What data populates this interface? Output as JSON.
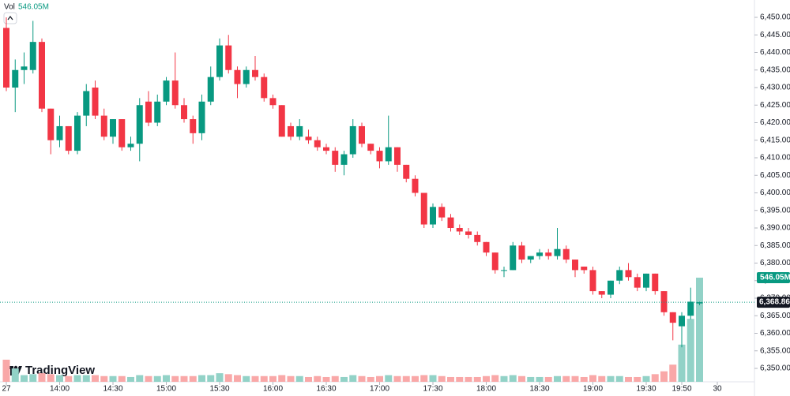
{
  "chart_data": {
    "type": "candlestick",
    "up_color": "#089981",
    "down_color": "#f23645",
    "volume_up_color": "#92d2c7",
    "volume_down_color": "#f9a8a8",
    "volume_title": "Vol",
    "volume_label": "546.05M",
    "last_price_label": "6,368.86",
    "brand": "TradingView",
    "open": [
      6447,
      6430,
      6435,
      6435,
      6443,
      6424,
      6415,
      6419,
      6412,
      6422,
      6430,
      6422,
      6416,
      6421,
      6413,
      6414,
      6426,
      6420,
      6426,
      6432,
      6425,
      6421,
      6417,
      6426,
      6433,
      6442,
      6435,
      6431,
      6435,
      6433,
      6427,
      6425,
      6419,
      6416,
      6416,
      6415,
      6413,
      6412,
      6408,
      6411,
      6419,
      6414,
      6412,
      6409,
      6413,
      6408,
      6404,
      6400,
      6391,
      6396,
      6393,
      6390,
      6389,
      6388,
      6386,
      6383,
      6378,
      6378,
      6385,
      6381,
      6382,
      6383,
      6382,
      6384,
      6381,
      6379,
      6378,
      6372,
      6371,
      6375,
      6378,
      6376,
      6373,
      6377,
      6372,
      6366,
      6362,
      6365,
      6368.5
    ],
    "high": [
      6450,
      6438,
      6440,
      6449,
      6444,
      6424,
      6422,
      6419,
      6423,
      6431,
      6432,
      6424,
      6421,
      6421,
      6416,
      6427,
      6429,
      6428,
      6433,
      6440,
      6427,
      6422,
      6428,
      6436,
      6444,
      6445,
      6436,
      6436,
      6439,
      6434,
      6428,
      6425,
      6420,
      6421,
      6418,
      6416,
      6414,
      6413,
      6412,
      6421,
      6420,
      6414,
      6413,
      6422,
      6413,
      6408,
      6405,
      6400,
      6397,
      6397,
      6394,
      6391,
      6390,
      6389,
      6386,
      6383,
      6379,
      6386,
      6386,
      6382,
      6384,
      6384,
      6390,
      6385,
      6381,
      6379,
      6379,
      6372,
      6375,
      6379,
      6380,
      6377,
      6377,
      6377,
      6372,
      6366,
      6366,
      6373,
      6369
    ],
    "low": [
      6429,
      6423,
      6431,
      6434,
      6423,
      6411,
      6413,
      6411,
      6411,
      6419,
      6421,
      6415,
      6414,
      6412,
      6412,
      6409,
      6419,
      6419,
      6425,
      6424,
      6420,
      6414,
      6415,
      6425,
      6432,
      6434,
      6427,
      6430,
      6432,
      6426,
      6424,
      6416,
      6415,
      6415,
      6414,
      6412,
      6411,
      6406,
      6405,
      6410,
      6413,
      6411,
      6407,
      6408,
      6406,
      6403,
      6399,
      6390,
      6390,
      6392,
      6389,
      6388,
      6387,
      6385,
      6382,
      6377,
      6376,
      6378,
      6380,
      6380,
      6381,
      6381,
      6381,
      6380,
      6376,
      6377,
      6371,
      6370,
      6370,
      6374,
      6375,
      6372,
      6372,
      6371,
      6365,
      6358,
      6356,
      6364,
      6368
    ],
    "close": [
      6430,
      6435,
      6436,
      6443,
      6424,
      6415,
      6419,
      6412,
      6422,
      6429,
      6422,
      6416,
      6421,
      6413,
      6414,
      6425,
      6420,
      6426,
      6432,
      6425,
      6421,
      6417,
      6426,
      6433,
      6442,
      6435,
      6431,
      6435,
      6433,
      6427,
      6425,
      6416,
      6416,
      6419,
      6415,
      6413,
      6412,
      6408,
      6411,
      6419,
      6414,
      6412,
      6409,
      6413,
      6408,
      6404,
      6400,
      6391,
      6396,
      6393,
      6390,
      6389,
      6388,
      6386,
      6383,
      6378,
      6378,
      6385,
      6381,
      6382,
      6383,
      6382,
      6384,
      6381,
      6378,
      6378,
      6372,
      6371,
      6375,
      6378,
      6376,
      6373,
      6377,
      6372,
      6366,
      6363,
      6365,
      6369,
      6368.86
    ],
    "volume": [
      116,
      70,
      35,
      40,
      45,
      40,
      35,
      30,
      35,
      35,
      35,
      30,
      30,
      30,
      25,
      35,
      30,
      30,
      35,
      30,
      30,
      30,
      35,
      35,
      45,
      40,
      35,
      30,
      30,
      30,
      30,
      35,
      30,
      30,
      25,
      30,
      25,
      30,
      25,
      35,
      30,
      25,
      30,
      35,
      30,
      30,
      30,
      35,
      35,
      30,
      25,
      25,
      25,
      25,
      30,
      35,
      30,
      35,
      30,
      25,
      25,
      25,
      30,
      30,
      30,
      25,
      35,
      30,
      30,
      30,
      25,
      25,
      30,
      40,
      55,
      90,
      195,
      330,
      546.05
    ],
    "ylim": [
      6350,
      6450
    ],
    "yticks": [
      {
        "value": 6350,
        "label": "6,350.00"
      },
      {
        "value": 6355,
        "label": "6,355.00"
      },
      {
        "value": 6360,
        "label": "6,360.00"
      },
      {
        "value": 6365,
        "label": "6,365.00"
      },
      {
        "value": 6370,
        "label": "6,370.00"
      },
      {
        "value": 6375,
        "label": "6,375.00"
      },
      {
        "value": 6380,
        "label": "6,380.00"
      },
      {
        "value": 6385,
        "label": "6,385.00"
      },
      {
        "value": 6390,
        "label": "6,390.00"
      },
      {
        "value": 6395,
        "label": "6,395.00"
      },
      {
        "value": 6400,
        "label": "6,400.00"
      },
      {
        "value": 6405,
        "label": "6,405.00"
      },
      {
        "value": 6410,
        "label": "6,410.00"
      },
      {
        "value": 6415,
        "label": "6,415.00"
      },
      {
        "value": 6420,
        "label": "6,420.00"
      },
      {
        "value": 6425,
        "label": "6,425.00"
      },
      {
        "value": 6430,
        "label": "6,430.00"
      },
      {
        "value": 6435,
        "label": "6,435.00"
      },
      {
        "value": 6440,
        "label": "6,440.00"
      },
      {
        "value": 6445,
        "label": "6,445.00"
      },
      {
        "value": 6450,
        "label": "6,450.00"
      }
    ],
    "xticks": [
      {
        "value": 0,
        "label": "27"
      },
      {
        "value": 6,
        "label": "14:00"
      },
      {
        "value": 12,
        "label": "14:30"
      },
      {
        "value": 18,
        "label": "15:00"
      },
      {
        "value": 24,
        "label": "15:30"
      },
      {
        "value": 30,
        "label": "16:00"
      },
      {
        "value": 36,
        "label": "16:30"
      },
      {
        "value": 42,
        "label": "17:00"
      },
      {
        "value": 48,
        "label": "17:30"
      },
      {
        "value": 54,
        "label": "18:00"
      },
      {
        "value": 60,
        "label": "18:30"
      },
      {
        "value": 66,
        "label": "19:00"
      },
      {
        "value": 72,
        "label": "19:30"
      },
      {
        "value": 76,
        "label": "19:50"
      },
      {
        "value": 80,
        "label": "30"
      }
    ],
    "grid": false
  }
}
